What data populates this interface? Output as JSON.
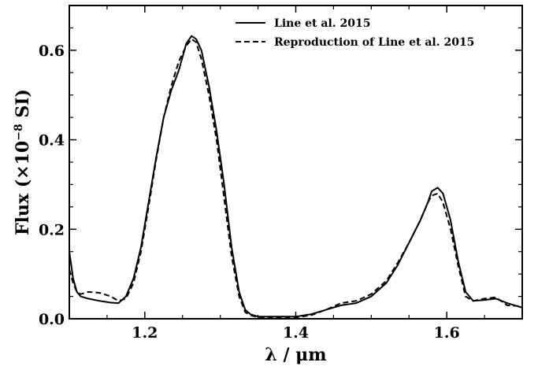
{
  "chart_data": {
    "type": "line",
    "xlabel": "λ / μm",
    "ylabel_prefix": "Flux (×10",
    "ylabel_exp": "−8",
    "ylabel_suffix": " SI)",
    "xlim": [
      1.1,
      1.7
    ],
    "ylim": [
      0.0,
      0.7
    ],
    "xticks": [
      1.2,
      1.4,
      1.6
    ],
    "xtick_labels": [
      "1.2",
      "1.4",
      "1.6"
    ],
    "yticks": [
      0.0,
      0.2,
      0.4,
      0.6
    ],
    "ytick_labels": [
      "0.0",
      "0.2",
      "0.4",
      "0.6"
    ],
    "grid": false,
    "legend_position": "top-right",
    "series": [
      {
        "name": "Line et al. 2015",
        "style": "solid",
        "color": "#000000",
        "x": [
          1.1,
          1.105,
          1.11,
          1.115,
          1.125,
          1.14,
          1.155,
          1.165,
          1.175,
          1.185,
          1.195,
          1.205,
          1.215,
          1.225,
          1.235,
          1.245,
          1.255,
          1.262,
          1.268,
          1.275,
          1.285,
          1.295,
          1.305,
          1.315,
          1.325,
          1.333,
          1.34,
          1.35,
          1.36,
          1.38,
          1.4,
          1.42,
          1.44,
          1.46,
          1.48,
          1.5,
          1.52,
          1.535,
          1.55,
          1.565,
          1.575,
          1.58,
          1.588,
          1.595,
          1.605,
          1.615,
          1.625,
          1.635,
          1.65,
          1.665,
          1.68,
          1.7
        ],
        "y": [
          0.15,
          0.09,
          0.06,
          0.05,
          0.045,
          0.04,
          0.036,
          0.035,
          0.05,
          0.09,
          0.16,
          0.26,
          0.36,
          0.45,
          0.51,
          0.555,
          0.615,
          0.632,
          0.625,
          0.6,
          0.52,
          0.42,
          0.3,
          0.16,
          0.06,
          0.02,
          0.01,
          0.005,
          0.005,
          0.005,
          0.005,
          0.01,
          0.02,
          0.03,
          0.035,
          0.05,
          0.08,
          0.12,
          0.17,
          0.22,
          0.26,
          0.285,
          0.293,
          0.28,
          0.22,
          0.13,
          0.06,
          0.04,
          0.042,
          0.045,
          0.035,
          0.025
        ]
      },
      {
        "name": "Reproduction of Line et al. 2015",
        "style": "dashed",
        "color": "#000000",
        "x": [
          1.1,
          1.105,
          1.11,
          1.115,
          1.125,
          1.14,
          1.155,
          1.165,
          1.175,
          1.185,
          1.195,
          1.205,
          1.215,
          1.225,
          1.235,
          1.245,
          1.255,
          1.262,
          1.268,
          1.275,
          1.285,
          1.295,
          1.305,
          1.315,
          1.325,
          1.333,
          1.34,
          1.35,
          1.36,
          1.38,
          1.4,
          1.42,
          1.44,
          1.46,
          1.48,
          1.5,
          1.52,
          1.535,
          1.55,
          1.565,
          1.575,
          1.58,
          1.588,
          1.595,
          1.605,
          1.615,
          1.625,
          1.635,
          1.65,
          1.665,
          1.68,
          1.7
        ],
        "y": [
          0.11,
          0.08,
          0.06,
          0.055,
          0.06,
          0.058,
          0.05,
          0.04,
          0.045,
          0.08,
          0.15,
          0.25,
          0.355,
          0.45,
          0.52,
          0.575,
          0.61,
          0.625,
          0.618,
          0.58,
          0.5,
          0.4,
          0.27,
          0.14,
          0.05,
          0.015,
          0.008,
          0.003,
          0.003,
          0.003,
          0.003,
          0.008,
          0.02,
          0.035,
          0.04,
          0.055,
          0.085,
          0.125,
          0.17,
          0.22,
          0.26,
          0.275,
          0.28,
          0.26,
          0.2,
          0.12,
          0.05,
          0.04,
          0.045,
          0.048,
          0.03,
          0.028
        ]
      }
    ]
  }
}
